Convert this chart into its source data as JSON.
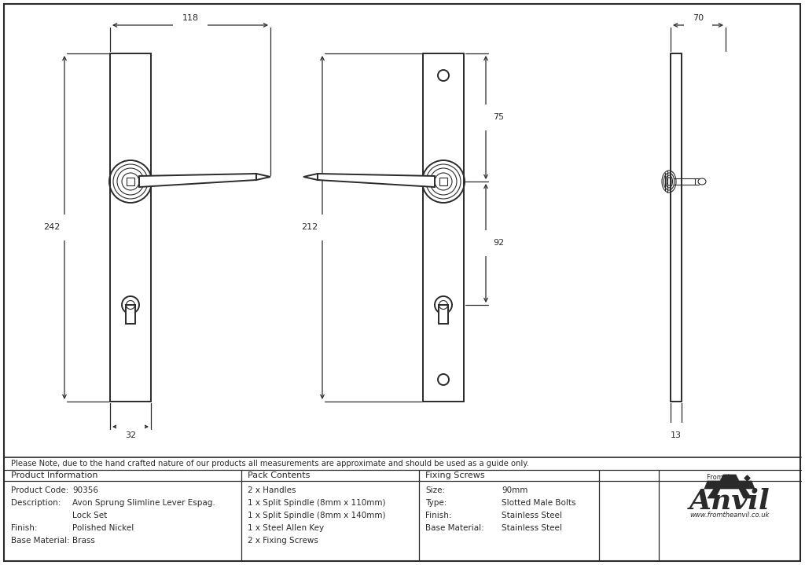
{
  "bg_color": "#ffffff",
  "line_color": "#2a2a2a",
  "note_text": "Please Note, due to the hand crafted nature of our products all measurements are approximate and should be used as a guide only.",
  "table_sections": [
    {
      "header": "Product Information",
      "rows": [
        [
          "Product Code:",
          "90356"
        ],
        [
          "Description:",
          "Avon Sprung Slimline Lever Espag."
        ],
        [
          "",
          "Lock Set"
        ],
        [
          "Finish:",
          "Polished Nickel"
        ],
        [
          "Base Material:",
          "Brass"
        ]
      ]
    },
    {
      "header": "Pack Contents",
      "rows": [
        [
          "2 x Handles"
        ],
        [
          "1 x Split Spindle (8mm x 110mm)"
        ],
        [
          "1 x Split Spindle (8mm x 140mm)"
        ],
        [
          "1 x Steel Allen Key"
        ],
        [
          "2 x Fixing Screws"
        ]
      ]
    },
    {
      "header": "Fixing Screws",
      "rows": [
        [
          "Size:",
          "90mm"
        ],
        [
          "Type:",
          "Slotted Male Bolts"
        ],
        [
          "Finish:",
          "Stainless Steel"
        ],
        [
          "Base Material:",
          "Stainless Steel"
        ]
      ]
    }
  ]
}
